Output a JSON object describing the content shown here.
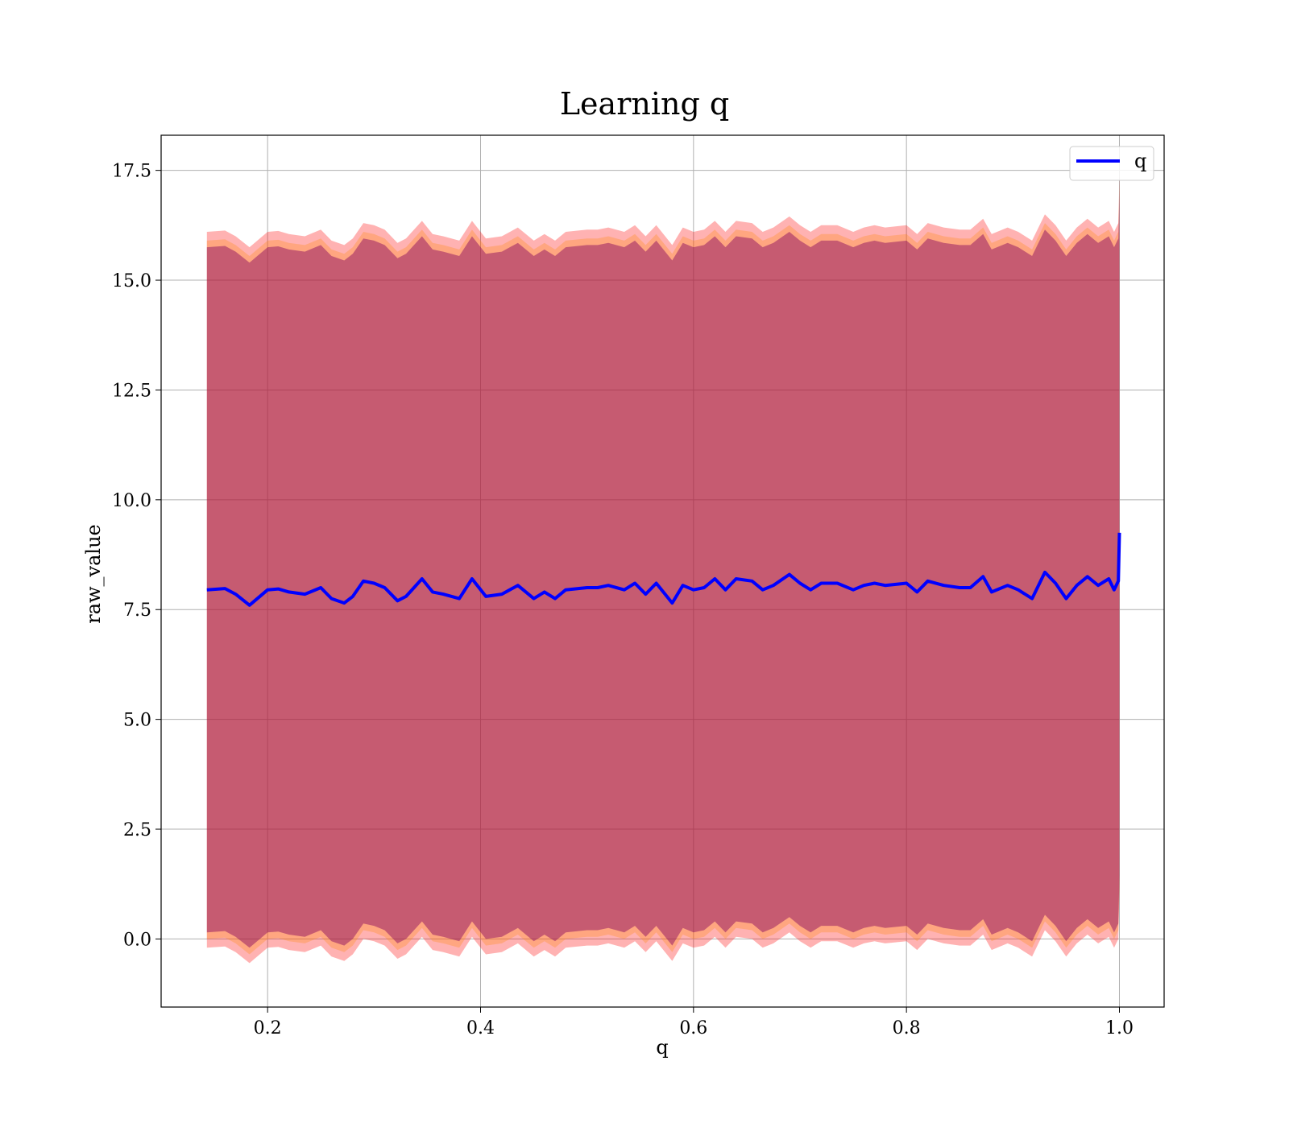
{
  "chart_data": {
    "type": "line",
    "title": "Learning q",
    "xlabel": "q",
    "ylabel": "raw_value",
    "xlim": [
      0.1,
      1.042
    ],
    "ylim": [
      -1.55,
      18.3
    ],
    "x_ticks": [
      0.2,
      0.4,
      0.6,
      0.8,
      1.0
    ],
    "x_tick_labels": [
      "0.2",
      "0.4",
      "0.6",
      "0.8",
      "1.0"
    ],
    "y_ticks": [
      0.0,
      2.5,
      5.0,
      7.5,
      10.0,
      12.5,
      15.0,
      17.5
    ],
    "y_tick_labels": [
      "0.0",
      "2.5",
      "5.0",
      "7.5",
      "10.0",
      "12.5",
      "15.0",
      "17.5"
    ],
    "grid": true,
    "legend_position": "top-right",
    "series": [
      {
        "name": "q",
        "color": "#0000ff",
        "x": [
          0.143,
          0.16,
          0.17,
          0.183,
          0.2,
          0.21,
          0.22,
          0.235,
          0.25,
          0.26,
          0.272,
          0.28,
          0.29,
          0.3,
          0.31,
          0.322,
          0.33,
          0.345,
          0.355,
          0.365,
          0.38,
          0.392,
          0.405,
          0.42,
          0.435,
          0.45,
          0.46,
          0.47,
          0.48,
          0.5,
          0.51,
          0.52,
          0.535,
          0.545,
          0.555,
          0.565,
          0.58,
          0.59,
          0.6,
          0.61,
          0.62,
          0.63,
          0.64,
          0.655,
          0.665,
          0.675,
          0.69,
          0.7,
          0.71,
          0.72,
          0.735,
          0.75,
          0.76,
          0.77,
          0.78,
          0.8,
          0.81,
          0.82,
          0.835,
          0.85,
          0.86,
          0.872,
          0.88,
          0.895,
          0.905,
          0.918,
          0.93,
          0.94,
          0.95,
          0.96,
          0.97,
          0.98,
          0.99,
          0.995,
          0.999,
          1.0
        ],
        "y": [
          7.95,
          7.98,
          7.85,
          7.6,
          7.95,
          7.97,
          7.9,
          7.85,
          8.0,
          7.75,
          7.65,
          7.8,
          8.15,
          8.1,
          8.0,
          7.7,
          7.8,
          8.2,
          7.9,
          7.85,
          7.75,
          8.2,
          7.8,
          7.85,
          8.05,
          7.75,
          7.9,
          7.75,
          7.95,
          8.0,
          8.0,
          8.05,
          7.95,
          8.1,
          7.85,
          8.1,
          7.65,
          8.05,
          7.95,
          8.0,
          8.2,
          7.95,
          8.2,
          8.15,
          7.95,
          8.05,
          8.3,
          8.1,
          7.95,
          8.1,
          8.1,
          7.95,
          8.05,
          8.1,
          8.05,
          8.1,
          7.9,
          8.15,
          8.05,
          8.0,
          8.0,
          8.25,
          7.9,
          8.05,
          7.95,
          7.75,
          8.35,
          8.1,
          7.75,
          8.05,
          8.25,
          8.05,
          8.2,
          7.95,
          8.15,
          9.25
        ],
        "ci_outer_halfwidth": 8.15,
        "ci_inner_halfwidth": 7.8,
        "band_colors": [
          "#ff0000",
          "#ff8800",
          "#800060"
        ]
      }
    ]
  }
}
